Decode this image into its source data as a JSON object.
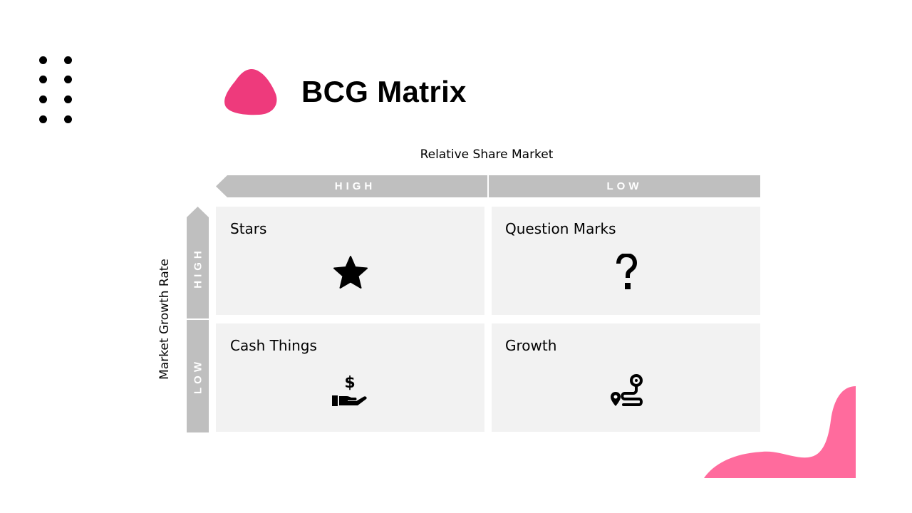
{
  "title": "BCG Matrix",
  "colors": {
    "accent_dark": "#ee3a7c",
    "accent_light": "#ff6b9d",
    "bar_gray": "#bfbfbf",
    "cell_bg": "#f2f2f2"
  },
  "axes": {
    "top_label": "Relative Share Market",
    "left_label": "Market Growth Rate",
    "top_high": "HIGH",
    "top_low": "LOW",
    "left_high": "HIGH",
    "left_low": "LOW"
  },
  "quadrants": [
    {
      "label": "Stars",
      "icon": "star-icon"
    },
    {
      "label": "Question Marks",
      "icon": "question-mark-icon"
    },
    {
      "label": "Cash Things",
      "icon": "hand-dollar-icon"
    },
    {
      "label": "Growth",
      "icon": "route-pin-icon"
    }
  ]
}
